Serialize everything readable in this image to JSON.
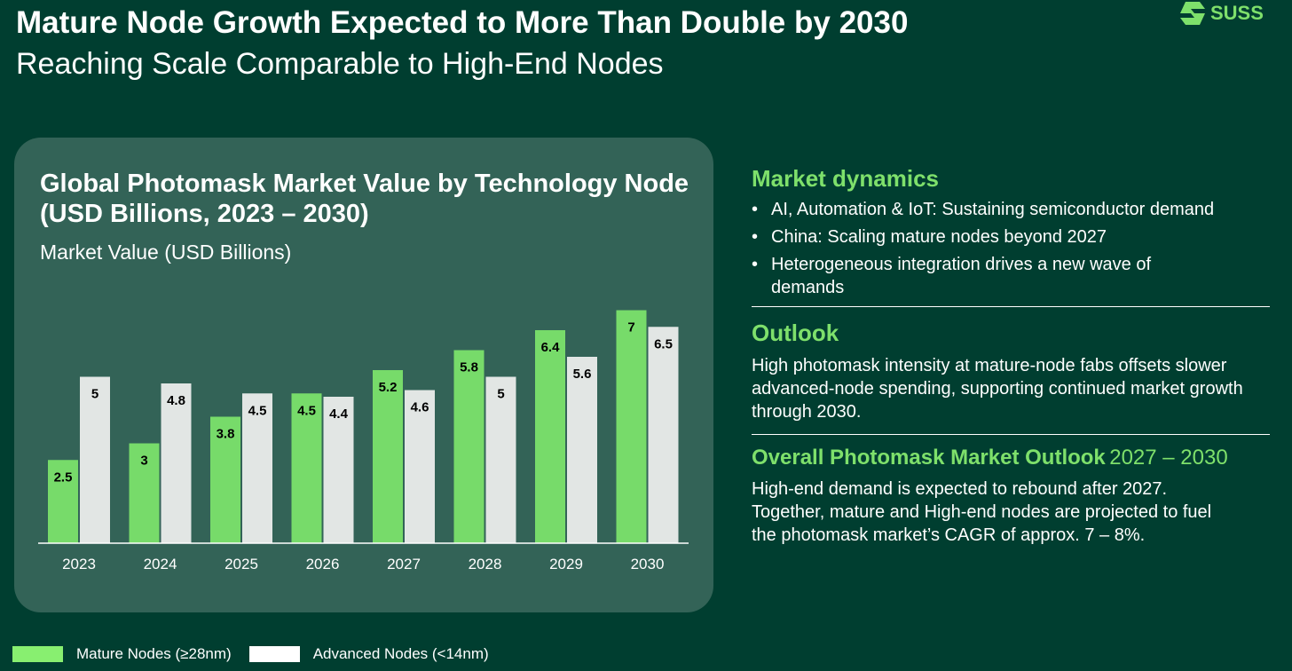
{
  "header": {
    "title": "Mature Node Growth Expected to More Than Double by 2030",
    "subtitle": "Reaching Scale Comparable to High-End Nodes",
    "logo": "SUSS"
  },
  "colors": {
    "mature": "#77db6a",
    "advanced": "#e2e6e4",
    "background": "#003e30",
    "accent": "#7ee06b"
  },
  "chart_data": {
    "type": "bar",
    "title": "Global Photomask Market Value by Technology Node (USD Billions, 2023 – 2030)",
    "ylabel": "Market Value (USD Billions)",
    "xlabel": "",
    "categories": [
      "2023",
      "2024",
      "2025",
      "2026",
      "2027",
      "2028",
      "2029",
      "2030"
    ],
    "series": [
      {
        "name": "Mature Nodes (≥28nm)",
        "values": [
          2.5,
          3,
          3.8,
          4.5,
          5.2,
          5.8,
          6.4,
          7
        ]
      },
      {
        "name": "Advanced Nodes (<14nm)",
        "values": [
          5,
          4.8,
          4.5,
          4.4,
          4.6,
          5,
          5.6,
          6.5
        ]
      }
    ],
    "ylim": [
      0,
      7.2
    ],
    "grid": false,
    "legend": "bottom-left"
  },
  "right": {
    "dynamics_title": "Market dynamics",
    "bullets": [
      "AI, Automation & IoT: Sustaining semiconductor demand",
      "China: Scaling mature nodes beyond 2027",
      "Heterogeneous integration drives a new wave of demands"
    ],
    "outlook_title": "Outlook",
    "outlook_text": "High photomask intensity at mature-node fabs offsets slower advanced-node spending, supporting continued market growth through 2030.",
    "overall_title": "Overall Photomask Market Outlook",
    "overall_years": "2027 – 2030",
    "overall_text": "High-end demand is expected to rebound after 2027. Together, mature and High-end nodes are projected to fuel the photomask market’s CAGR of approx. 7 – 8%."
  }
}
